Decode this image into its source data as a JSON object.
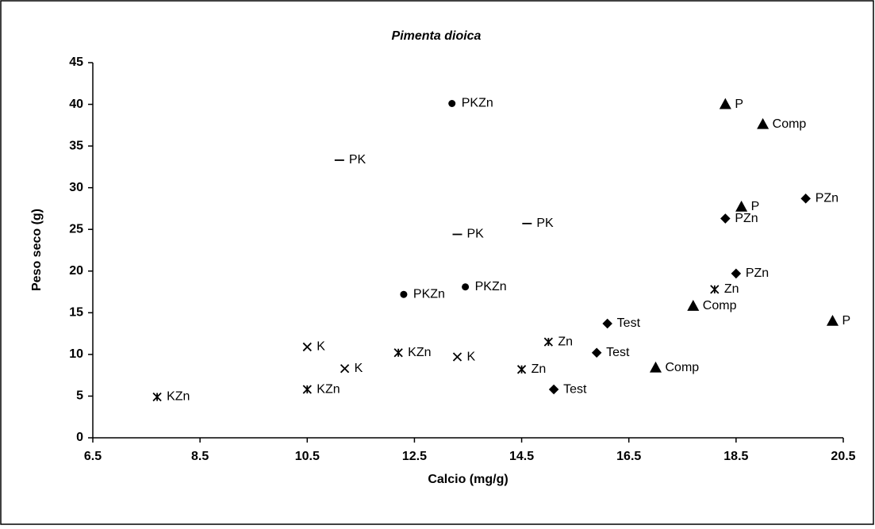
{
  "chart_data": {
    "type": "scatter",
    "title": "Pimenta dioica",
    "x_label": "Calcio (mg/g)",
    "y_label": "Peso seco (g)",
    "xlim": [
      6.5,
      20.5
    ],
    "xticks": [
      6.5,
      8.5,
      10.5,
      12.5,
      14.5,
      16.5,
      18.5,
      20.5
    ],
    "ylim": [
      0,
      45
    ],
    "yticks": [
      0,
      5,
      10,
      15,
      20,
      25,
      30,
      35,
      40,
      45
    ],
    "series": [
      {
        "name": "KZn",
        "marker": "asterisk",
        "color": "#000000",
        "x": [
          7.7,
          10.5,
          12.2
        ],
        "values": [
          4.9,
          5.8,
          10.2
        ]
      },
      {
        "name": "K",
        "marker": "x",
        "color": "#000000",
        "x": [
          10.5,
          11.2,
          13.3
        ],
        "values": [
          10.9,
          8.3,
          9.7
        ]
      },
      {
        "name": "Zn",
        "marker": "asterisk",
        "color": "#000000",
        "x": [
          15.0,
          14.5,
          18.1
        ],
        "values": [
          11.5,
          8.2,
          17.8
        ]
      },
      {
        "name": "Test",
        "marker": "diamond",
        "color": "#000000",
        "x": [
          15.1,
          15.9,
          16.1
        ],
        "values": [
          5.8,
          10.2,
          13.7
        ]
      },
      {
        "name": "Comp",
        "marker": "triangle",
        "color": "#000000",
        "x": [
          17.0,
          17.7,
          19.0
        ],
        "values": [
          8.4,
          15.8,
          37.6
        ]
      },
      {
        "name": "PZn",
        "marker": "diamond",
        "color": "#000000",
        "x": [
          18.5,
          18.3,
          19.8
        ],
        "values": [
          19.7,
          26.3,
          28.7
        ]
      },
      {
        "name": "P",
        "marker": "triangle",
        "color": "#000000",
        "x": [
          18.3,
          18.6,
          20.3
        ],
        "values": [
          40.0,
          27.7,
          14.0
        ]
      },
      {
        "name": "PKZn",
        "marker": "circle",
        "color": "#000000",
        "x": [
          13.2,
          13.45,
          12.3
        ],
        "values": [
          40.1,
          18.1,
          17.2
        ]
      },
      {
        "name": "PK",
        "marker": "dash",
        "color": "#000000",
        "x": [
          11.1,
          13.3,
          14.6
        ],
        "values": [
          33.3,
          24.4,
          25.7
        ]
      }
    ]
  }
}
